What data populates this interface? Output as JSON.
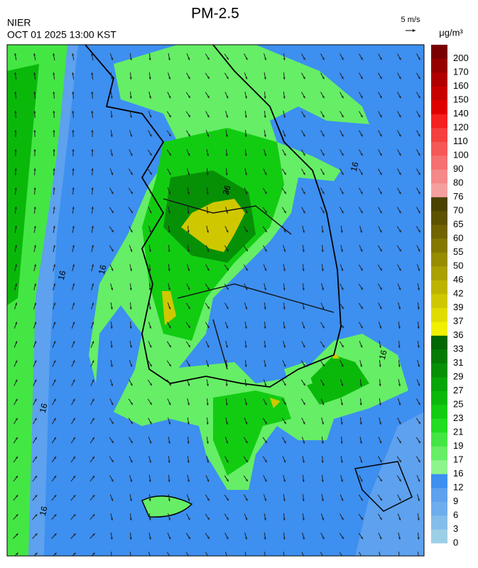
{
  "header": {
    "title": "PM-2.5",
    "agency": "NIER",
    "datetime": "OCT 01 2025 13:00 KST",
    "wind_scale": "5 m/s"
  },
  "legend": {
    "unit": "μg/m³",
    "ticks": [
      0,
      3,
      6,
      9,
      12,
      16,
      17,
      19,
      21,
      23,
      25,
      27,
      29,
      31,
      33,
      36,
      37,
      39,
      42,
      46,
      50,
      55,
      60,
      65,
      70,
      76,
      80,
      90,
      100,
      110,
      120,
      140,
      150,
      160,
      170,
      200
    ],
    "colors": [
      "#9ccfe6",
      "#84bdea",
      "#6eaded",
      "#5da1ef",
      "#3d8ff0",
      "#8ef58e",
      "#66ee66",
      "#44e644",
      "#22dd22",
      "#12cc12",
      "#0ab80a",
      "#08a508",
      "#069006",
      "#047c04",
      "#026802",
      "#f0f000",
      "#e0dc00",
      "#cfc800",
      "#bdb400",
      "#aaa000",
      "#978c00",
      "#847800",
      "#716400",
      "#5e5200",
      "#4b4200",
      "#f5a0a0",
      "#f58888",
      "#f57070",
      "#f55858",
      "#f54040",
      "#f52020",
      "#e00000",
      "#c80000",
      "#b00000",
      "#960000",
      "#7a0000"
    ]
  },
  "contour_labels": [
    16,
    16,
    16,
    16,
    16,
    16,
    36
  ]
}
